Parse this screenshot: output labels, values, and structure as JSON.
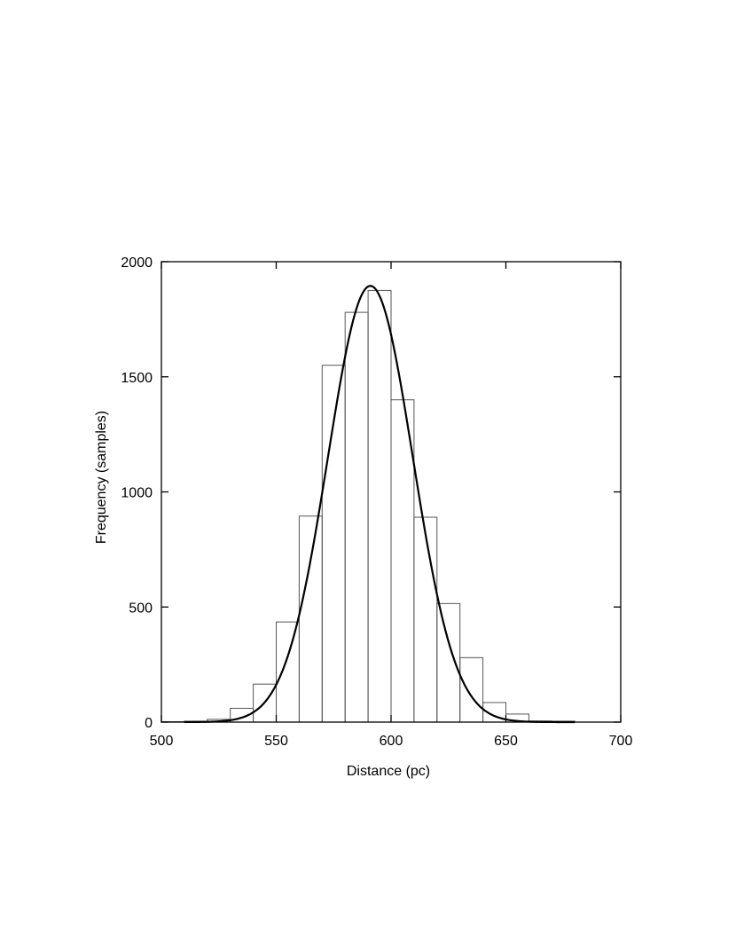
{
  "chart_data": {
    "type": "bar",
    "title": "",
    "xlabel": "Distance (pc)",
    "ylabel": "Frequency (samples)",
    "xlim": [
      500,
      700
    ],
    "ylim": [
      0,
      2000
    ],
    "xticks": [
      500,
      550,
      600,
      650,
      700
    ],
    "yticks": [
      0,
      500,
      1000,
      1500,
      2000
    ],
    "grid": false,
    "legend": "none",
    "bin_width": 10,
    "histogram": {
      "bin_starts": [
        500,
        510,
        520,
        530,
        540,
        550,
        560,
        570,
        580,
        590,
        600,
        610,
        620,
        630,
        640,
        650,
        660,
        670
      ],
      "counts": [
        2,
        4,
        12,
        60,
        165,
        435,
        895,
        1550,
        1780,
        1875,
        1400,
        890,
        515,
        280,
        85,
        35,
        5,
        4
      ]
    },
    "fit_curve": {
      "type": "gaussian",
      "mean": 591,
      "sigma": 18.5,
      "peak": 1895
    }
  }
}
